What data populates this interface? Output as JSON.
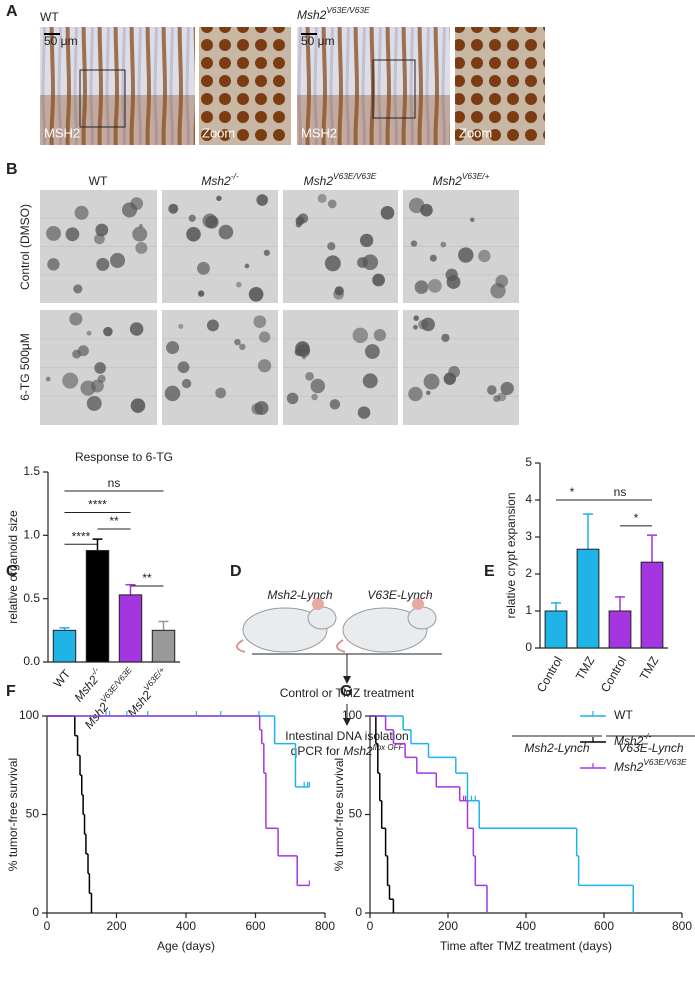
{
  "figure": {
    "panel_labels": [
      "A",
      "B",
      "C",
      "D",
      "E",
      "F",
      "G"
    ],
    "panel_a": {
      "left_title": "WT",
      "right_title": "Msh2V63E/V63E",
      "scale_bar": "50 μm",
      "stain": "MSH2",
      "zoom": "Zoom"
    },
    "panel_b": {
      "columns": [
        "WT",
        "Msh2-/-",
        "Msh2V63E/V63E",
        "Msh2V63E/+"
      ],
      "rows": [
        "Control (DMSO)",
        "6-TG 500μM"
      ]
    },
    "panel_d": {
      "groups": [
        "Msh2-Lynch",
        "V63E-Lynch"
      ],
      "step1": "Control or TMZ treatment",
      "step2": "Intestinal DNA isolation",
      "step3": {
        "prefix": "qPCR for",
        "gene": "Msh2",
        "sup": "flox OFF"
      }
    }
  },
  "chart_data": [
    {
      "type": "bar",
      "title": "Response to 6-TG",
      "ylabel": "relative organoid size",
      "categories": [
        "WT",
        "Msh2-/-",
        "Msh2V63E/V63E",
        "Msh2V63E/+"
      ],
      "values": [
        0.25,
        0.88,
        0.53,
        0.25
      ],
      "errors": [
        0.02,
        0.09,
        0.08,
        0.07
      ],
      "colors": [
        "#1fb3e8",
        "#000000",
        "#a436e0",
        "#999999"
      ],
      "ylim": [
        0,
        1.5
      ],
      "yticks": [
        {
          "value": 0,
          "label": "0.0"
        },
        {
          "value": 0.5,
          "label": "0.5"
        },
        {
          "value": 1,
          "label": "1.0"
        },
        {
          "value": 1.5,
          "label": "1.5"
        }
      ],
      "annotations": [
        "ns",
        "****",
        "**",
        "****",
        "**"
      ]
    },
    {
      "type": "bar",
      "ylabel": "relative crypt expansion",
      "categories": [
        "Control",
        "TMZ",
        "Control",
        "TMZ"
      ],
      "values": [
        1.0,
        2.67,
        1.0,
        2.32
      ],
      "errors": [
        0.22,
        0.95,
        0.38,
        0.73
      ],
      "colors": [
        "#1fb3e8",
        "#1fb3e8",
        "#a436e0",
        "#a436e0"
      ],
      "ylim": [
        0,
        5
      ],
      "yticks": [
        0,
        1,
        2,
        3,
        4,
        5
      ],
      "group_labels": [
        "Msh2-Lynch",
        "V63E-Lynch"
      ],
      "annotations": [
        "*",
        "ns",
        "*"
      ]
    },
    {
      "type": "survival",
      "xlabel": "Age (days)",
      "ylabel": "% tumor-free survival",
      "xlim": [
        0,
        800
      ],
      "xticks": [
        0,
        200,
        400,
        600,
        800
      ],
      "ylim": [
        0,
        100
      ],
      "yticks": [
        0,
        50,
        100
      ],
      "series": [
        {
          "name": "WT",
          "color": "#1fb3e8",
          "x": [
            0,
            655,
            715
          ],
          "values": [
            100,
            86,
            64
          ],
          "censored": [
            170,
            180,
            230,
            290,
            430,
            500,
            610,
            740,
            750,
            755
          ]
        },
        {
          "name": "Msh2-/-",
          "color": "#000000",
          "x": [
            0,
            80,
            88,
            95,
            100,
            104,
            108,
            112,
            118,
            122,
            128
          ],
          "values": [
            100,
            90,
            80,
            70,
            60,
            50,
            40,
            30,
            20,
            10,
            0
          ],
          "censored": []
        },
        {
          "name": "Msh2V63E/V63E",
          "color": "#a436e0",
          "x": [
            0,
            612,
            618,
            624,
            630,
            665,
            720
          ],
          "values": [
            100,
            93,
            86,
            71,
            43,
            29,
            14
          ],
          "censored": [
            755
          ]
        }
      ]
    },
    {
      "type": "survival",
      "xlabel": "Time after TMZ treatment (days)",
      "ylabel": "% tumor-free survival",
      "xlim": [
        0,
        800
      ],
      "xticks": [
        0,
        200,
        400,
        600,
        800
      ],
      "ylim": [
        0,
        100
      ],
      "yticks": [
        0,
        50,
        100
      ],
      "legend": "upper right",
      "series": [
        {
          "name": "WT",
          "color": "#1fb3e8",
          "x": [
            0,
            85,
            105,
            150,
            220,
            250,
            280,
            530,
            535,
            675
          ],
          "values": [
            100,
            93,
            86,
            79,
            71,
            57,
            43,
            29,
            14,
            0
          ],
          "censored": [
            260,
            270
          ]
        },
        {
          "name": "Msh2-/-",
          "color": "#000000",
          "x": [
            0,
            15,
            20,
            25,
            30,
            40,
            45,
            50,
            60
          ],
          "values": [
            100,
            86,
            71,
            57,
            43,
            29,
            14,
            7,
            0
          ],
          "censored": []
        },
        {
          "name": "Msh2V63E/V63E",
          "color": "#a436e0",
          "x": [
            0,
            40,
            60,
            90,
            120,
            170,
            230,
            250,
            265,
            270,
            300
          ],
          "values": [
            100,
            93,
            86,
            79,
            71,
            64,
            57,
            43,
            29,
            14,
            0
          ],
          "censored": [
            240,
            245
          ]
        }
      ]
    }
  ]
}
